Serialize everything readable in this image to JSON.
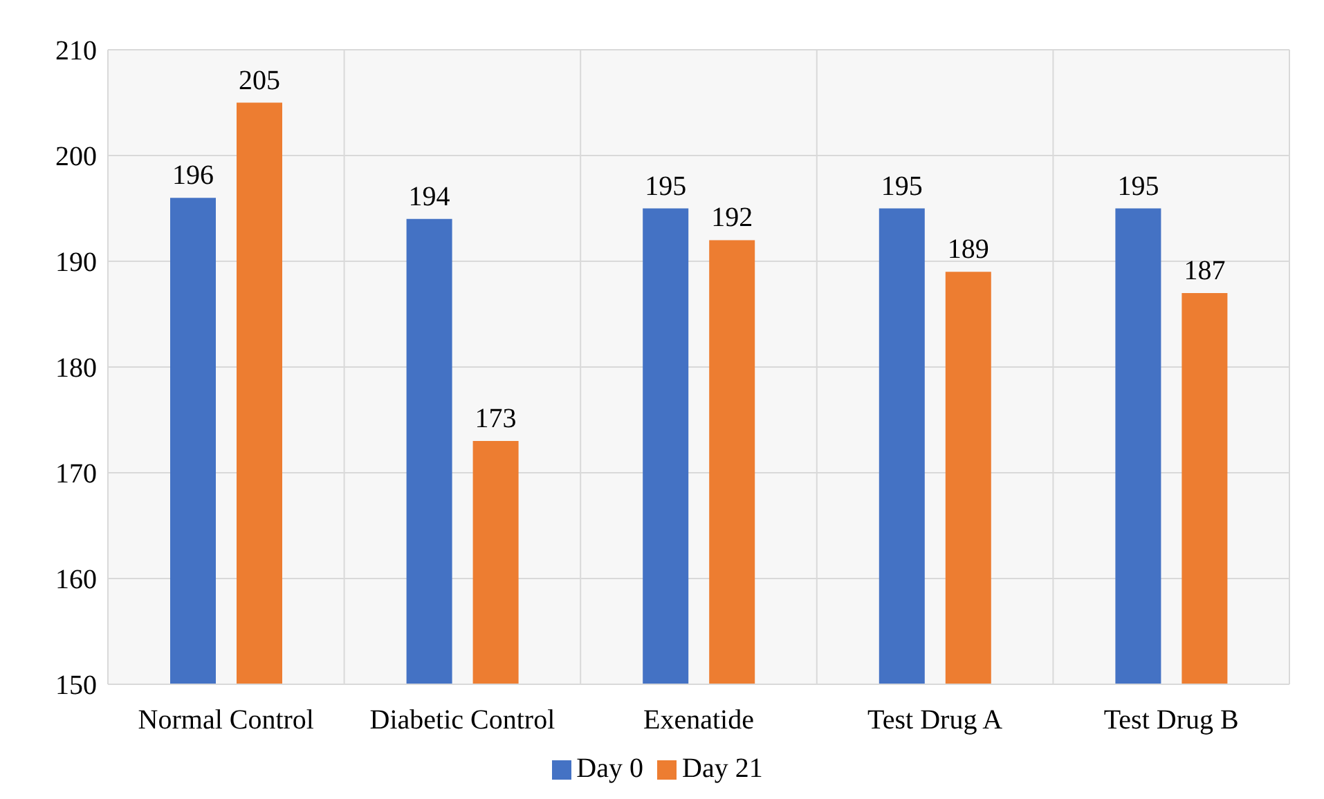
{
  "chart_data": {
    "type": "bar",
    "categories": [
      "Normal Control",
      "Diabetic Control",
      "Exenatide",
      "Test Drug A",
      "Test Drug B"
    ],
    "series": [
      {
        "name": "Day 0",
        "color": "#4472c4",
        "values": [
          196,
          194,
          195,
          195,
          195
        ]
      },
      {
        "name": "Day 21",
        "color": "#ed7d31",
        "values": [
          205,
          173,
          192,
          189,
          187
        ]
      }
    ],
    "ylim": [
      150,
      210
    ],
    "yticks": [
      150,
      160,
      170,
      180,
      190,
      200,
      210
    ],
    "grid": true,
    "legend": "bottom",
    "data_labels": true
  }
}
